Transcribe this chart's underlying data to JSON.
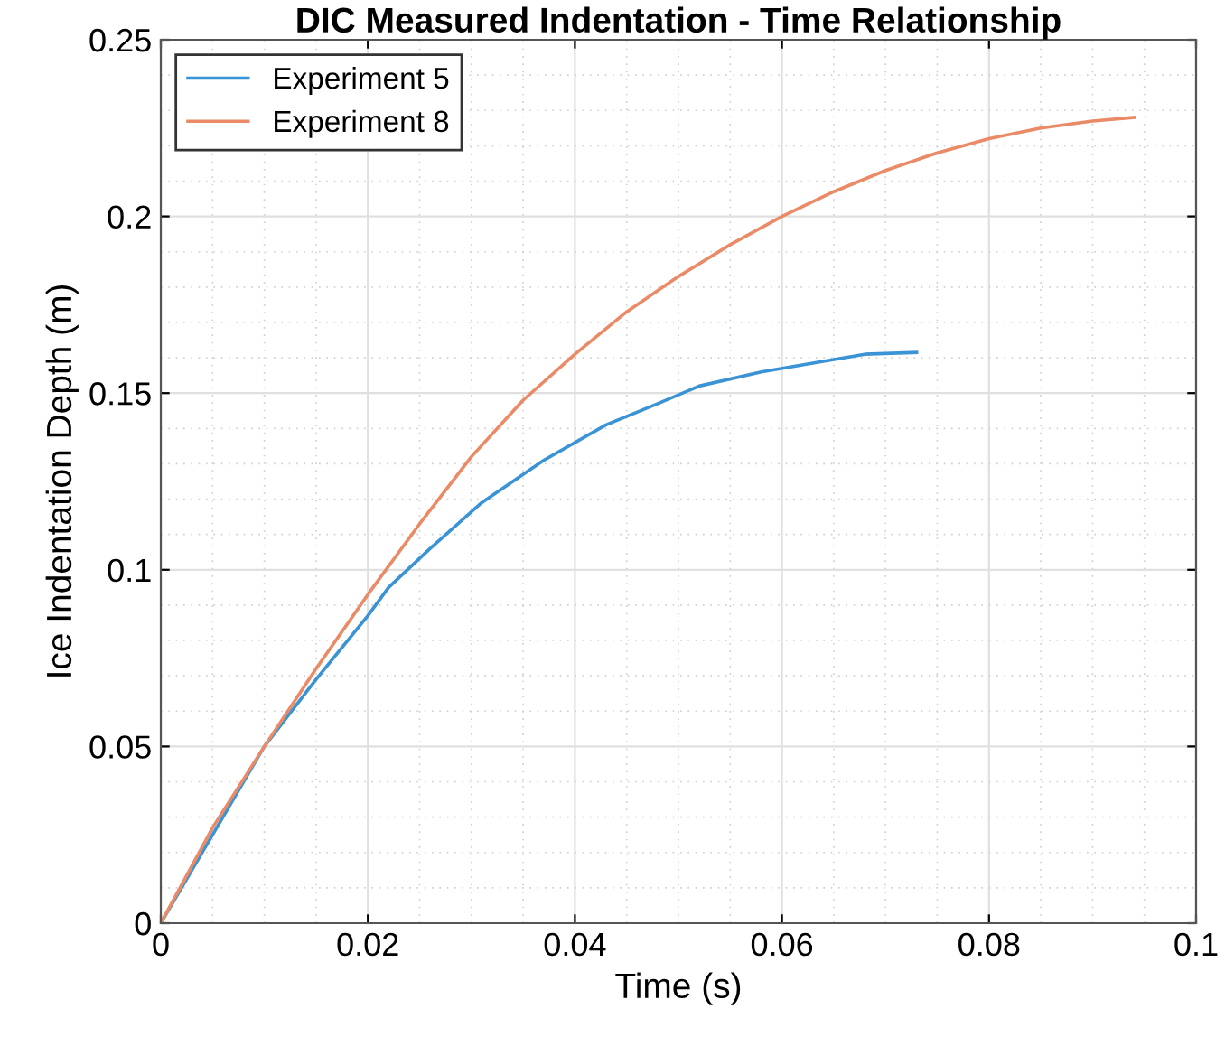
{
  "chart_data": {
    "type": "line",
    "title": "DIC Measured Indentation - Time Relationship",
    "xlabel": "Time (s)",
    "ylabel": "Ice Indentation Depth (m)",
    "xlim": [
      0,
      0.1
    ],
    "ylim": [
      0,
      0.25
    ],
    "xticks": [
      0,
      0.02,
      0.04,
      0.06,
      0.08,
      0.1
    ],
    "yticks": [
      0,
      0.05,
      0.1,
      0.15,
      0.2,
      0.25
    ],
    "grid": true,
    "legend": "top left",
    "line_style": "solid",
    "series": [
      {
        "name": "Experiment 5",
        "color": "#3a93d4",
        "x": [
          0,
          0.005,
          0.01,
          0.015,
          0.02,
          0.022,
          0.026,
          0.031,
          0.037,
          0.043,
          0.048,
          0.052,
          0.058,
          0.064,
          0.068,
          0.073
        ],
        "values": [
          0,
          0.025,
          0.05,
          0.069,
          0.087,
          0.095,
          0.106,
          0.119,
          0.131,
          0.141,
          0.147,
          0.152,
          0.156,
          0.159,
          0.161,
          0.1615
        ]
      },
      {
        "name": "Experiment 8",
        "color": "#ea8a66",
        "x": [
          0,
          0.005,
          0.01,
          0.015,
          0.02,
          0.025,
          0.03,
          0.035,
          0.04,
          0.045,
          0.05,
          0.055,
          0.06,
          0.065,
          0.07,
          0.075,
          0.08,
          0.085,
          0.09,
          0.094
        ],
        "values": [
          0,
          0.027,
          0.05,
          0.072,
          0.093,
          0.113,
          0.132,
          0.148,
          0.161,
          0.173,
          0.183,
          0.192,
          0.2,
          0.207,
          0.213,
          0.218,
          0.222,
          0.225,
          0.227,
          0.228
        ]
      }
    ]
  }
}
